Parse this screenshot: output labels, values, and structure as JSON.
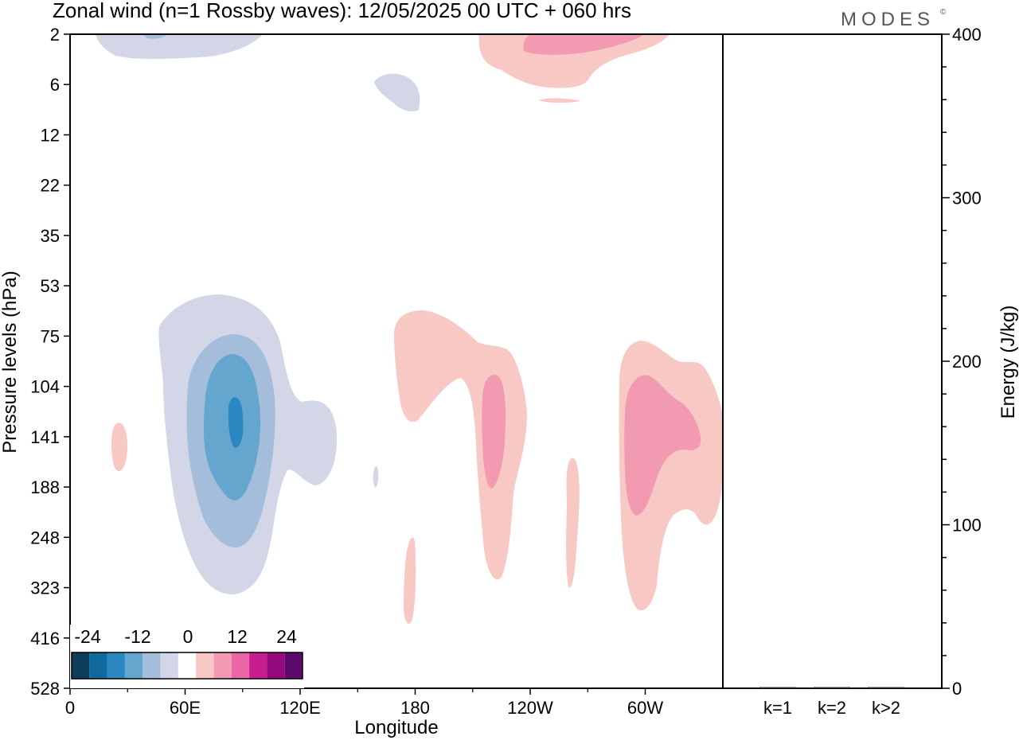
{
  "title": "Zonal wind (n=1 Rossby waves):  12/05/2025  00 UTC  + 060 hrs",
  "brand": "MODES",
  "brand_mark": "©",
  "chart_data": [
    {
      "type": "heatmap",
      "title": "Zonal wind (n=1 Rossby waves):  12/05/2025  00 UTC  + 060 hrs",
      "xlabel": "Longitude",
      "ylabel": "Pressure levels (hPa)",
      "x_ticks": [
        "0",
        "60E",
        "120E",
        "180",
        "120W",
        "60W"
      ],
      "y_ticks": [
        "2",
        "6",
        "12",
        "22",
        "35",
        "53",
        "75",
        "104",
        "141",
        "188",
        "248",
        "323",
        "416",
        "528"
      ],
      "colorbar": {
        "labels": [
          "-24",
          "-12",
          "0",
          "12",
          "24"
        ],
        "colors": [
          "#0e3d5c",
          "#0f6b9e",
          "#2a87bf",
          "#65a6cf",
          "#a3bddb",
          "#d3d6e7",
          "#ffffff",
          "#f8c8c4",
          "#f39ab3",
          "#ec67a8",
          "#c81d8e",
          "#96097c",
          "#5e0a6c"
        ]
      },
      "features": [
        {
          "kind": "negative",
          "level": -24,
          "longitude": 88,
          "pressure_hPa": 130,
          "description": "core"
        },
        {
          "kind": "positive",
          "level": 12,
          "longitude": 295,
          "pressure_hPa": 135
        },
        {
          "kind": "positive",
          "level": 12,
          "longitude": 223,
          "pressure_hPa": 135
        },
        {
          "kind": "positive",
          "level": 12,
          "longitude": 245,
          "pressure_hPa": 2
        }
      ]
    },
    {
      "type": "bar",
      "categories": [
        "k=1",
        "k=2",
        "k>2"
      ],
      "values": [
        0,
        0,
        0
      ],
      "ylabel": "Energy (J/kg)",
      "ylim": [
        0,
        400
      ],
      "y_ticks": [
        "0",
        "100",
        "200",
        "300",
        "400"
      ]
    }
  ]
}
